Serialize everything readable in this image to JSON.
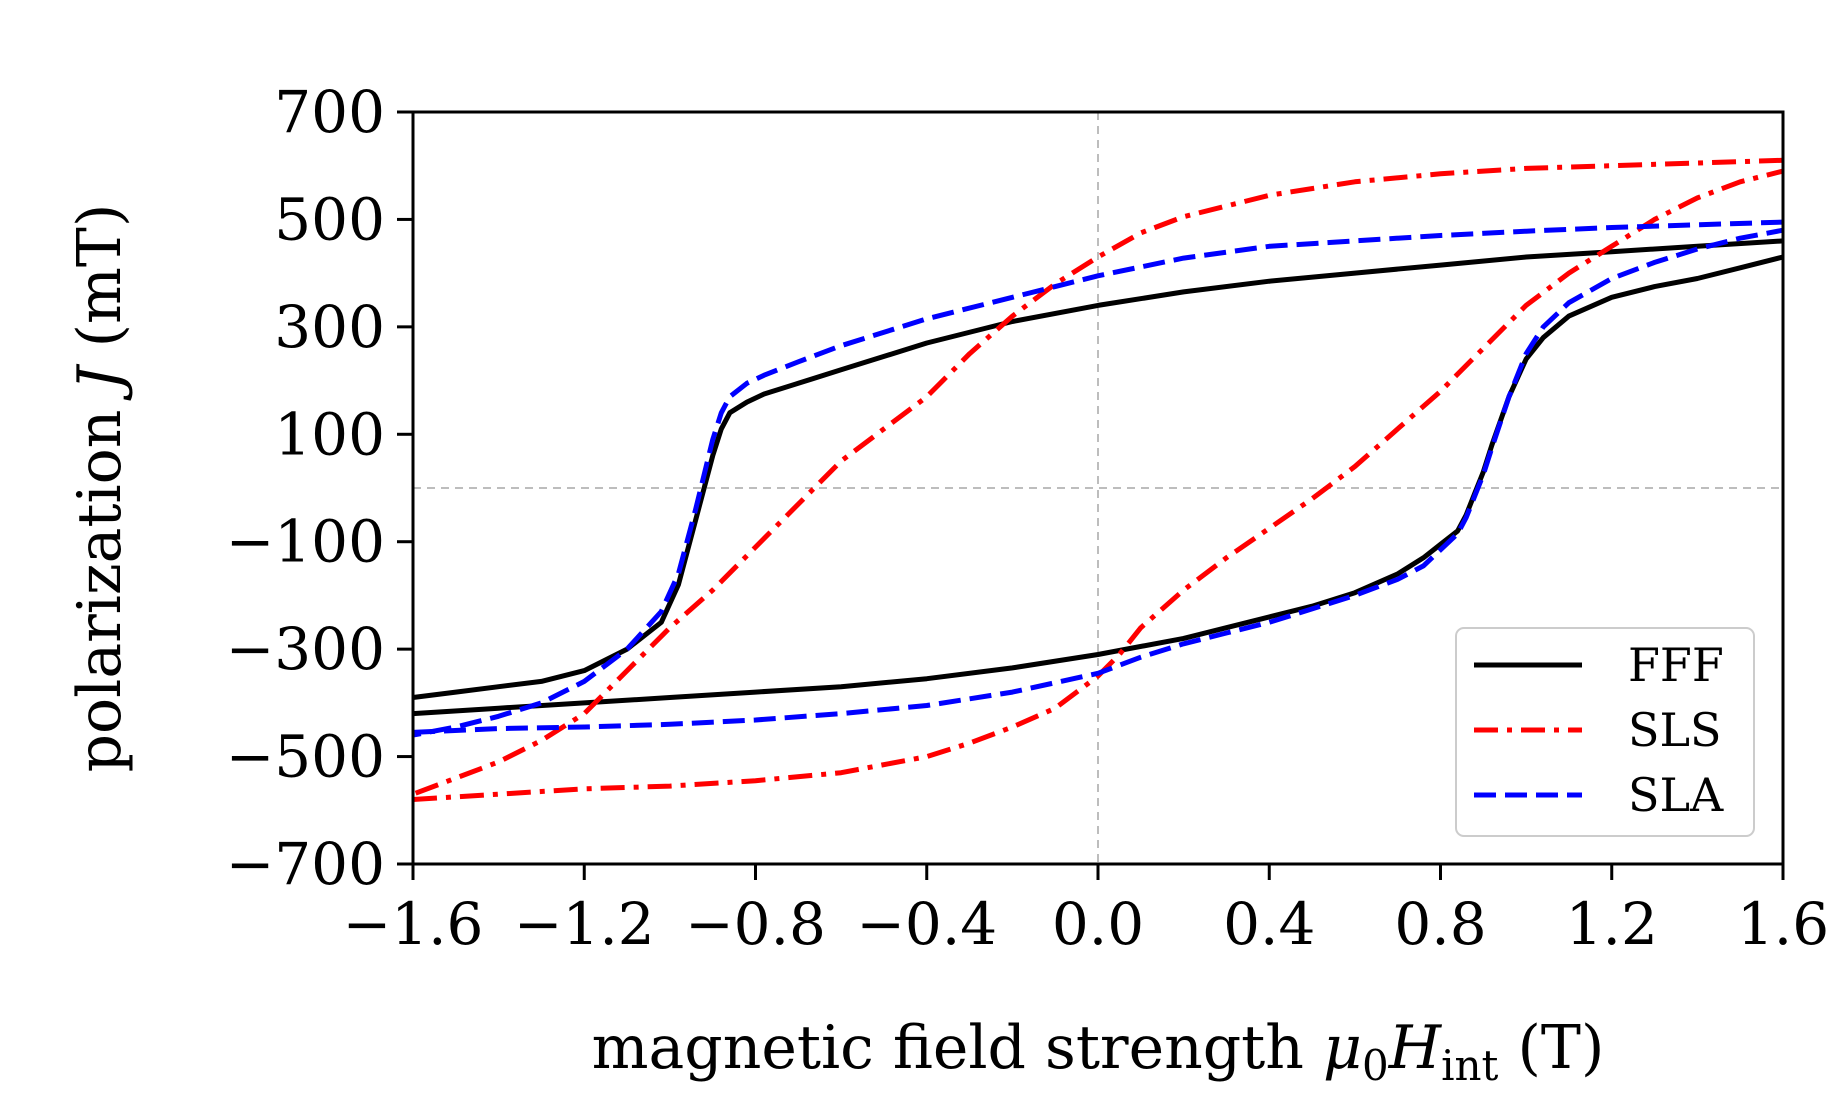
{
  "chart_data": {
    "type": "line",
    "title": "",
    "xlabel": "magnetic field strength μ0Hint (T)",
    "xlabel_parts": {
      "main": "magnetic field strength ",
      "mu": "μ",
      "sub0": "0",
      "H": "H",
      "subint": "int",
      "unit": " (T)"
    },
    "ylabel": "polarization J (mT)",
    "ylabel_parts": {
      "main": "polarization ",
      "sym": "J",
      "unit": " (mT)"
    },
    "xlim": [
      -1.6,
      1.6
    ],
    "ylim": [
      -700,
      700
    ],
    "xticks": [
      -1.6,
      -1.2,
      -0.8,
      -0.4,
      0.0,
      0.4,
      0.8,
      1.2,
      1.6
    ],
    "xtick_labels": [
      "−1.6",
      "−1.2",
      "−0.8",
      "−0.4",
      "0.0",
      "0.4",
      "0.8",
      "1.2",
      "1.6"
    ],
    "yticks": [
      700,
      500,
      300,
      100,
      -100,
      -300,
      -500,
      -700
    ],
    "ytick_labels": [
      "700",
      "500",
      "300",
      "100",
      "−100",
      "−300",
      "−500",
      "−700"
    ],
    "reference_lines": {
      "x": 0,
      "y": 0
    },
    "grid": false,
    "legend_position": "bottom-right",
    "series": [
      {
        "name": "FFF",
        "color": "#000000",
        "style": "solid",
        "branches": [
          {
            "x": [
              1.6,
              1.4,
              1.2,
              1.0,
              0.8,
              0.6,
              0.4,
              0.2,
              0.0,
              -0.2,
              -0.4,
              -0.6,
              -0.7,
              -0.78,
              -0.82,
              -0.86,
              -0.88,
              -0.9,
              -0.94,
              -0.98,
              -1.02,
              -1.1,
              -1.2,
              -1.3,
              -1.4,
              -1.5,
              -1.6
            ],
            "y": [
              460,
              450,
              440,
              430,
              415,
              400,
              385,
              365,
              340,
              310,
              270,
              220,
              195,
              175,
              160,
              140,
              110,
              60,
              -60,
              -180,
              -250,
              -300,
              -340,
              -360,
              -370,
              -380,
              -390
            ]
          },
          {
            "x": [
              -1.6,
              -1.4,
              -1.2,
              -1.0,
              -0.8,
              -0.6,
              -0.4,
              -0.2,
              0.0,
              0.2,
              0.3,
              0.4,
              0.5,
              0.6,
              0.7,
              0.76,
              0.8,
              0.84,
              0.86,
              0.88,
              0.9,
              0.92,
              0.96,
              1.0,
              1.04,
              1.1,
              1.2,
              1.3,
              1.4,
              1.5,
              1.6
            ],
            "y": [
              -420,
              -410,
              -400,
              -390,
              -380,
              -370,
              -355,
              -335,
              -310,
              -280,
              -260,
              -240,
              -220,
              -195,
              -160,
              -130,
              -105,
              -80,
              -50,
              -10,
              30,
              80,
              170,
              240,
              280,
              320,
              355,
              375,
              390,
              410,
              430
            ]
          }
        ]
      },
      {
        "name": "SLS",
        "color": "#ff0000",
        "style": "dashdot",
        "branches": [
          {
            "x": [
              1.6,
              1.4,
              1.2,
              1.0,
              0.8,
              0.6,
              0.4,
              0.2,
              0.1,
              0.0,
              -0.1,
              -0.2,
              -0.3,
              -0.4,
              -0.5,
              -0.6,
              -0.7,
              -0.8,
              -0.9,
              -1.0,
              -1.1,
              -1.2,
              -1.3,
              -1.4,
              -1.5,
              -1.6
            ],
            "y": [
              610,
              605,
              600,
              595,
              585,
              570,
              545,
              505,
              475,
              430,
              380,
              320,
              250,
              170,
              110,
              50,
              -30,
              -110,
              -190,
              -260,
              -340,
              -420,
              -470,
              -510,
              -540,
              -570
            ]
          },
          {
            "x": [
              -1.6,
              -1.4,
              -1.2,
              -1.0,
              -0.8,
              -0.6,
              -0.4,
              -0.3,
              -0.2,
              -0.1,
              0.0,
              0.05,
              0.1,
              0.2,
              0.3,
              0.4,
              0.5,
              0.6,
              0.7,
              0.8,
              0.9,
              1.0,
              1.1,
              1.2,
              1.3,
              1.4,
              1.5,
              1.6
            ],
            "y": [
              -580,
              -570,
              -560,
              -555,
              -545,
              -530,
              -500,
              -475,
              -445,
              -410,
              -350,
              -310,
              -260,
              -190,
              -130,
              -75,
              -20,
              40,
              110,
              180,
              260,
              340,
              400,
              450,
              500,
              540,
              570,
              590
            ]
          }
        ]
      },
      {
        "name": "SLA",
        "color": "#0000ff",
        "style": "dashed",
        "branches": [
          {
            "x": [
              1.6,
              1.4,
              1.2,
              1.0,
              0.8,
              0.6,
              0.4,
              0.2,
              0.0,
              -0.1,
              -0.2,
              -0.4,
              -0.6,
              -0.7,
              -0.78,
              -0.82,
              -0.86,
              -0.88,
              -0.9,
              -0.94,
              -0.98,
              -1.02,
              -1.1,
              -1.2,
              -1.3,
              -1.4,
              -1.5,
              -1.6
            ],
            "y": [
              495,
              490,
              485,
              478,
              470,
              460,
              450,
              428,
              395,
              375,
              355,
              315,
              265,
              235,
              210,
              195,
              170,
              140,
              90,
              -40,
              -160,
              -230,
              -300,
              -360,
              -400,
              -425,
              -445,
              -460
            ]
          },
          {
            "x": [
              -1.6,
              -1.4,
              -1.2,
              -1.0,
              -0.8,
              -0.6,
              -0.4,
              -0.2,
              0.0,
              0.1,
              0.2,
              0.3,
              0.4,
              0.5,
              0.6,
              0.7,
              0.76,
              0.8,
              0.84,
              0.86,
              0.88,
              0.9,
              0.92,
              0.96,
              1.0,
              1.04,
              1.1,
              1.2,
              1.3,
              1.4,
              1.5,
              1.6
            ],
            "y": [
              -455,
              -448,
              -445,
              -440,
              -432,
              -420,
              -405,
              -380,
              -345,
              -315,
              -290,
              -270,
              -250,
              -225,
              -200,
              -170,
              -145,
              -115,
              -85,
              -55,
              -15,
              25,
              75,
              170,
              250,
              300,
              345,
              390,
              420,
              445,
              465,
              480
            ]
          }
        ]
      }
    ]
  }
}
